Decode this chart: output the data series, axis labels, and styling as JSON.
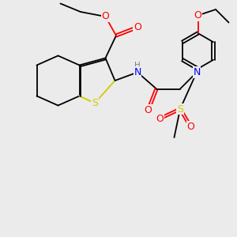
{
  "bg_color": "#ebebeb",
  "bond_color": "#000000",
  "bond_lw": 1.5,
  "atom_colors": {
    "O": "#ff0000",
    "S_thio": "#cccc00",
    "S_sulfonyl": "#cccc00",
    "N": "#0000ff",
    "H": "#808080",
    "C": "#000000"
  }
}
